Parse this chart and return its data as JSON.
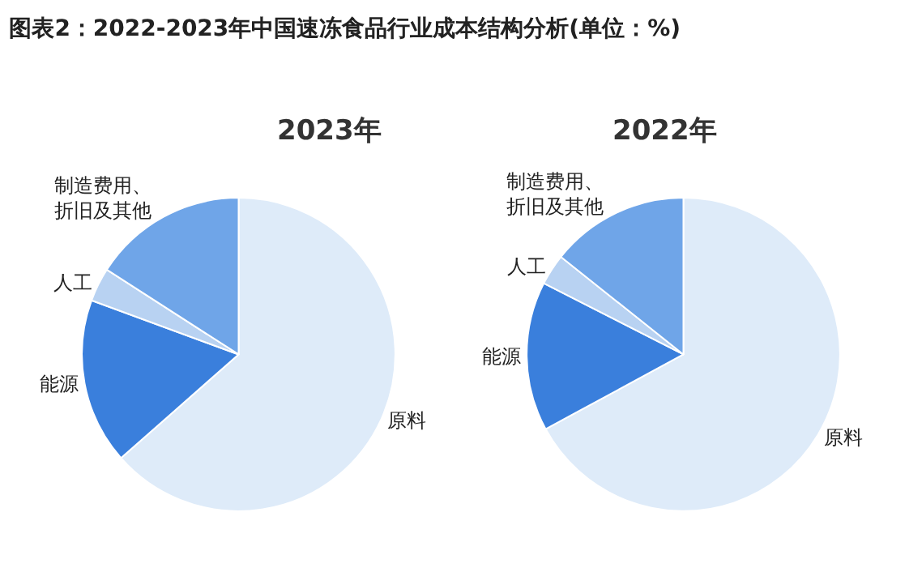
{
  "chart_data": [
    {
      "type": "pie",
      "title": "图表2：2022-2023年中国速冻食品行业成本结构分析(单位：%)",
      "subtitle": "2023年",
      "categories": [
        "原料",
        "能源",
        "人工",
        "制造费用、折旧及其他"
      ],
      "values": [
        63.5,
        17.1,
        3.5,
        15.9
      ],
      "colors": [
        "#deebf9",
        "#3a7fdc",
        "#b8d2f2",
        "#6fa5e8"
      ],
      "legend": false
    },
    {
      "type": "pie",
      "subtitle": "2022年",
      "categories": [
        "原料",
        "能源",
        "人工",
        "制造费用、折旧及其他"
      ],
      "values": [
        67.1,
        15.4,
        3.2,
        14.3
      ],
      "colors": [
        "#deebf9",
        "#3a7fdc",
        "#b8d2f2",
        "#6fa5e8"
      ],
      "legend": false
    }
  ]
}
